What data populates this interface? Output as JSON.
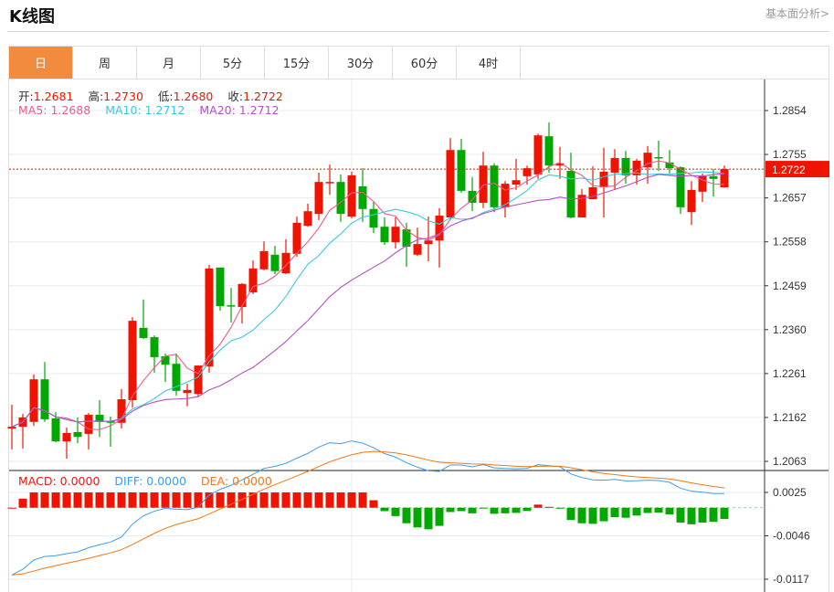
{
  "header": {
    "title": "K线图",
    "fundamental_link": "基本面分析>"
  },
  "tabs": [
    {
      "label": "日",
      "active": true
    },
    {
      "label": "周"
    },
    {
      "label": "月"
    },
    {
      "label": "5分"
    },
    {
      "label": "15分"
    },
    {
      "label": "30分"
    },
    {
      "label": "60分"
    },
    {
      "label": "4时"
    }
  ],
  "ohlc_info": {
    "open_label": "开:",
    "open": "1.2681",
    "high_label": "高:",
    "high": "1.2730",
    "low_label": "低:",
    "low": "1.2680",
    "close_label": "收:",
    "close": "1.2722"
  },
  "ma_info": {
    "ma5": "MA5: 1.2688",
    "ma10": "MA10: 1.2712",
    "ma20": "MA20: 1.2712"
  },
  "macd_info": {
    "macd": "MACD: 0.0000",
    "diff": "DIFF: 0.0000",
    "dea": "DEA: 0.0000"
  },
  "colors": {
    "up": "#f01400",
    "down": "#00a800",
    "ma5": "#ef5a8c",
    "ma10": "#3cc8dc",
    "ma20": "#b450c8",
    "diff": "#3c9cf0",
    "dea": "#f07814",
    "accent": "#f28b3e"
  },
  "chart_data": {
    "type": "candlestick",
    "price_axis": {
      "ticks": [
        "1.2854",
        "1.2755",
        "1.2657",
        "1.2558",
        "1.2459",
        "1.2360",
        "1.2261",
        "1.2162",
        "1.2063"
      ],
      "range": [
        1.2063,
        1.2854
      ]
    },
    "last_price": "1.2722",
    "macd_axis": {
      "ticks": [
        "0.0025",
        "-0.0046",
        "-0.0117"
      ],
      "range": [
        -0.0117,
        0.0025
      ]
    },
    "candles": [
      [
        1.2137,
        1.2191,
        1.209,
        1.2141
      ],
      [
        1.2141,
        1.217,
        1.2092,
        1.2162
      ],
      [
        1.2152,
        1.2259,
        1.2143,
        1.2248
      ],
      [
        1.2248,
        1.2287,
        1.2152,
        1.2158
      ],
      [
        1.216,
        1.2174,
        1.2106,
        1.2108
      ],
      [
        1.2108,
        1.2139,
        1.2069,
        1.2127
      ],
      [
        1.2129,
        1.2162,
        1.2104,
        1.2118
      ],
      [
        1.2125,
        1.2172,
        1.209,
        1.2168
      ],
      [
        1.2168,
        1.2201,
        1.2118,
        1.2152
      ],
      [
        1.2154,
        1.2164,
        1.2096,
        1.215
      ],
      [
        1.215,
        1.2226,
        1.2137,
        1.2203
      ],
      [
        1.2201,
        1.2388,
        1.2184,
        1.238
      ],
      [
        1.2364,
        1.2428,
        1.2339,
        1.2341
      ],
      [
        1.2343,
        1.2347,
        1.2263,
        1.2298
      ],
      [
        1.23,
        1.2306,
        1.2242,
        1.2281
      ],
      [
        1.2283,
        1.2306,
        1.2211,
        1.2222
      ],
      [
        1.2217,
        1.2238,
        1.2187,
        1.2224
      ],
      [
        1.2215,
        1.2279,
        1.2209,
        1.2279
      ],
      [
        1.2277,
        1.2506,
        1.2263,
        1.2498
      ],
      [
        1.25,
        1.25,
        1.2403,
        1.2413
      ],
      [
        1.2415,
        1.2454,
        1.2376,
        1.2413
      ],
      [
        1.2411,
        1.2465,
        1.2374,
        1.2463
      ],
      [
        1.2444,
        1.2516,
        1.244,
        1.2498
      ],
      [
        1.2496,
        1.2559,
        1.2494,
        1.2537
      ],
      [
        1.2529,
        1.2549,
        1.2485,
        1.2492
      ],
      [
        1.2487,
        1.2564,
        1.2485,
        1.2533
      ],
      [
        1.2531,
        1.2615,
        1.2524,
        1.2601
      ],
      [
        1.2594,
        1.2644,
        1.2592,
        1.2627
      ],
      [
        1.2621,
        1.2714,
        1.2607,
        1.2693
      ],
      [
        1.2691,
        1.2732,
        1.2664,
        1.2693
      ],
      [
        1.2693,
        1.271,
        1.2603,
        1.2621
      ],
      [
        1.2615,
        1.2716,
        1.2611,
        1.2708
      ],
      [
        1.2683,
        1.2724,
        1.2603,
        1.2632
      ],
      [
        1.2632,
        1.2648,
        1.2578,
        1.259
      ],
      [
        1.2592,
        1.2613,
        1.2551,
        1.2557
      ],
      [
        1.2557,
        1.2613,
        1.2543,
        1.2592
      ],
      [
        1.2586,
        1.2601,
        1.2502,
        1.2547
      ],
      [
        1.2529,
        1.259,
        1.2526,
        1.2553
      ],
      [
        1.2553,
        1.2615,
        1.2514,
        1.2561
      ],
      [
        1.2561,
        1.2634,
        1.25,
        1.2617
      ],
      [
        1.2613,
        1.2792,
        1.2609,
        1.2765
      ],
      [
        1.2765,
        1.279,
        1.2669,
        1.2673
      ],
      [
        1.2673,
        1.2704,
        1.2627,
        1.2646
      ],
      [
        1.2646,
        1.2761,
        1.2634,
        1.273
      ],
      [
        1.273,
        1.2735,
        1.2625,
        1.2636
      ],
      [
        1.2636,
        1.2695,
        1.2613,
        1.2689
      ],
      [
        1.2687,
        1.2745,
        1.2675,
        1.2697
      ],
      [
        1.2706,
        1.273,
        1.2687,
        1.2724
      ],
      [
        1.271,
        1.2802,
        1.27,
        1.2798
      ],
      [
        1.2796,
        1.2827,
        1.2714,
        1.273
      ],
      [
        1.273,
        1.2772,
        1.27,
        1.2735
      ],
      [
        1.2718,
        1.2759,
        1.2611,
        1.2613
      ],
      [
        1.2613,
        1.2677,
        1.2613,
        1.2664
      ],
      [
        1.2654,
        1.2728,
        1.2654,
        1.2681
      ],
      [
        1.2681,
        1.277,
        1.2613,
        1.2716
      ],
      [
        1.2714,
        1.2767,
        1.2675,
        1.2747
      ],
      [
        1.2747,
        1.2763,
        1.2689,
        1.2708
      ],
      [
        1.2708,
        1.2745,
        1.2687,
        1.2741
      ],
      [
        1.2726,
        1.2774,
        1.2689,
        1.2759
      ],
      [
        1.2749,
        1.2786,
        1.2718,
        1.2747
      ],
      [
        1.2737,
        1.2765,
        1.2712,
        1.2724
      ],
      [
        1.2726,
        1.2728,
        1.2621,
        1.2636
      ],
      [
        1.2625,
        1.2695,
        1.2596,
        1.2675
      ],
      [
        1.2671,
        1.2712,
        1.2648,
        1.2706
      ],
      [
        1.2706,
        1.2722,
        1.266,
        1.27
      ],
      [
        1.2681,
        1.273,
        1.268,
        1.2722
      ]
    ]
  }
}
